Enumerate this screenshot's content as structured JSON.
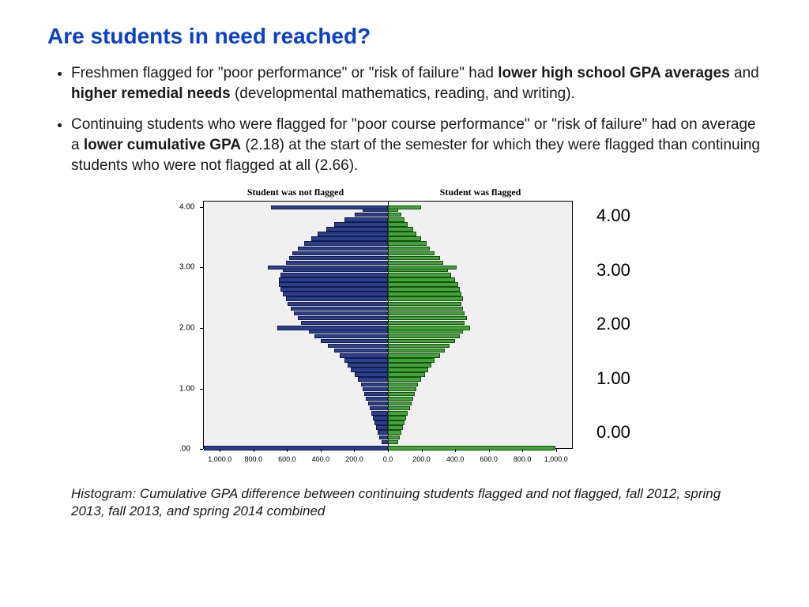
{
  "title": "Are students in need reached?",
  "title_color": "#0a3fd6",
  "bullets": [
    {
      "pre": "Freshmen flagged for \"poor performance\" or \"risk of failure\" had ",
      "bold1": "lower high school GPA averages",
      "mid": " and ",
      "bold2": "higher remedial needs",
      "post": " (developmental mathematics, reading, and writing)."
    },
    {
      "pre": "Continuing students who were flagged for \"poor course performance\" or \"risk of failure\" had on average a ",
      "bold1": "lower cumulative GPA",
      "mid": "",
      "bold2": "",
      "post": " (2.18) at the start of the semester for which they were flagged than continuing students who were not flagged at all (2.66)."
    }
  ],
  "chart": {
    "header_left": "Student was not flagged",
    "header_right": "Student was flagged",
    "background_color": "#f0f0f0",
    "left_color": "#2c3e8f",
    "right_color": "#3fa535",
    "y_ticks": [
      ".00",
      "1.00",
      "2.00",
      "3.00",
      "4.00"
    ],
    "y_max": 4.1,
    "x_ticks_left": [
      "1,000.0",
      "800.0",
      "600.0",
      "400.0",
      "200.0",
      "0.0"
    ],
    "x_ticks_right": [
      "200.0",
      "400.0",
      "600.0",
      "800.0",
      "1,000.0"
    ],
    "x_max": 1100,
    "bins": [
      {
        "y": 0.0,
        "l": 1100,
        "r": 1000
      },
      {
        "y": 0.1,
        "l": 40,
        "r": 60
      },
      {
        "y": 0.18,
        "l": 50,
        "r": 70
      },
      {
        "y": 0.26,
        "l": 60,
        "r": 80
      },
      {
        "y": 0.34,
        "l": 70,
        "r": 90
      },
      {
        "y": 0.42,
        "l": 80,
        "r": 100
      },
      {
        "y": 0.5,
        "l": 90,
        "r": 110
      },
      {
        "y": 0.58,
        "l": 100,
        "r": 120
      },
      {
        "y": 0.66,
        "l": 110,
        "r": 130
      },
      {
        "y": 0.74,
        "l": 120,
        "r": 140
      },
      {
        "y": 0.82,
        "l": 130,
        "r": 150
      },
      {
        "y": 0.9,
        "l": 140,
        "r": 160
      },
      {
        "y": 0.98,
        "l": 150,
        "r": 170
      },
      {
        "y": 1.06,
        "l": 160,
        "r": 180
      },
      {
        "y": 1.14,
        "l": 180,
        "r": 200
      },
      {
        "y": 1.22,
        "l": 200,
        "r": 220
      },
      {
        "y": 1.3,
        "l": 220,
        "r": 240
      },
      {
        "y": 1.38,
        "l": 240,
        "r": 260
      },
      {
        "y": 1.46,
        "l": 260,
        "r": 280
      },
      {
        "y": 1.54,
        "l": 290,
        "r": 310
      },
      {
        "y": 1.62,
        "l": 320,
        "r": 340
      },
      {
        "y": 1.7,
        "l": 360,
        "r": 370
      },
      {
        "y": 1.78,
        "l": 400,
        "r": 400
      },
      {
        "y": 1.86,
        "l": 440,
        "r": 430
      },
      {
        "y": 1.94,
        "l": 470,
        "r": 450
      },
      {
        "y": 2.0,
        "l": 660,
        "r": 490
      },
      {
        "y": 2.08,
        "l": 520,
        "r": 460
      },
      {
        "y": 2.16,
        "l": 540,
        "r": 470
      },
      {
        "y": 2.24,
        "l": 560,
        "r": 460
      },
      {
        "y": 2.32,
        "l": 580,
        "r": 450
      },
      {
        "y": 2.4,
        "l": 600,
        "r": 440
      },
      {
        "y": 2.48,
        "l": 610,
        "r": 450
      },
      {
        "y": 2.56,
        "l": 630,
        "r": 440
      },
      {
        "y": 2.64,
        "l": 640,
        "r": 430
      },
      {
        "y": 2.72,
        "l": 650,
        "r": 420
      },
      {
        "y": 2.8,
        "l": 650,
        "r": 400
      },
      {
        "y": 2.88,
        "l": 640,
        "r": 380
      },
      {
        "y": 2.96,
        "l": 630,
        "r": 360
      },
      {
        "y": 3.0,
        "l": 720,
        "r": 410
      },
      {
        "y": 3.08,
        "l": 610,
        "r": 330
      },
      {
        "y": 3.16,
        "l": 590,
        "r": 310
      },
      {
        "y": 3.24,
        "l": 570,
        "r": 280
      },
      {
        "y": 3.32,
        "l": 540,
        "r": 250
      },
      {
        "y": 3.4,
        "l": 500,
        "r": 230
      },
      {
        "y": 3.48,
        "l": 460,
        "r": 200
      },
      {
        "y": 3.56,
        "l": 420,
        "r": 170
      },
      {
        "y": 3.64,
        "l": 370,
        "r": 150
      },
      {
        "y": 3.72,
        "l": 320,
        "r": 120
      },
      {
        "y": 3.8,
        "l": 260,
        "r": 100
      },
      {
        "y": 3.88,
        "l": 200,
        "r": 80
      },
      {
        "y": 3.96,
        "l": 150,
        "r": 60
      },
      {
        "y": 4.0,
        "l": 700,
        "r": 200
      }
    ]
  },
  "side_labels": [
    "4.00",
    "3.00",
    "2.00",
    "1.00",
    "0.00"
  ],
  "caption": "Histogram: Cumulative GPA difference between continuing students flagged and not flagged, fall 2012, spring 2013, fall 2013, and spring 2014 combined"
}
